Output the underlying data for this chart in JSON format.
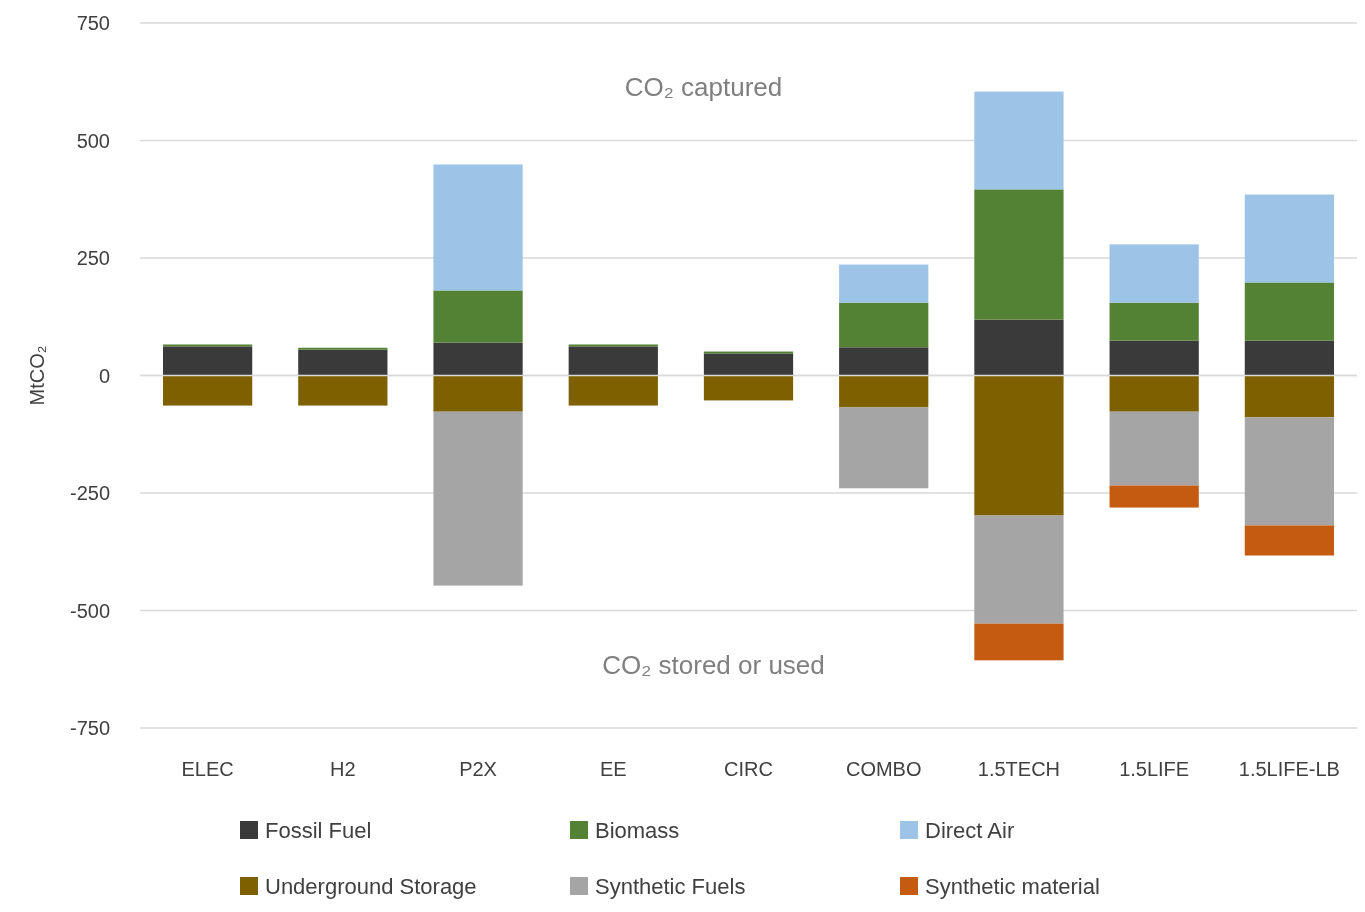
{
  "chart_data": {
    "type": "bar",
    "stacked": true,
    "ylabel": "MtCO₂",
    "annotations": [
      "CO₂ captured",
      "CO₂ stored or used"
    ],
    "categories": [
      "ELEC",
      "H2",
      "P2X",
      "EE",
      "CIRC",
      "COMBO",
      "1.5TECH",
      "1.5LIFE",
      "1.5LIFE-LB"
    ],
    "series": [
      {
        "name": "Fossil Fuel",
        "color": "#3a3a3a",
        "values": [
          62,
          55,
          70,
          62,
          47,
          60,
          119,
          74,
          74
        ]
      },
      {
        "name": "Biomass",
        "color": "#548235",
        "values": [
          4,
          4,
          111,
          4,
          4,
          95,
          277,
          81,
          124
        ]
      },
      {
        "name": "Direct Air",
        "color": "#9dc3e6",
        "values": [
          null,
          null,
          268,
          null,
          null,
          81,
          208,
          124,
          187
        ]
      },
      {
        "name": "Underground Storage",
        "color": "#7f6000",
        "values": [
          -64,
          -64,
          -77,
          -64,
          -53,
          -68,
          -298,
          -77,
          -89
        ]
      },
      {
        "name": "Synthetic Fuels",
        "color": "#a5a5a5",
        "values": [
          null,
          null,
          -370,
          null,
          null,
          -172,
          -230,
          -157,
          -230
        ]
      },
      {
        "name": "Synthetic material",
        "color": "#c55a11",
        "values": [
          null,
          null,
          null,
          null,
          null,
          null,
          -78,
          -47,
          -64
        ]
      }
    ],
    "ylim": [
      -750,
      750
    ],
    "yticks": [
      -750,
      -500,
      -250,
      0,
      250,
      500,
      750
    ],
    "grid": "y",
    "legend": "bottom"
  }
}
